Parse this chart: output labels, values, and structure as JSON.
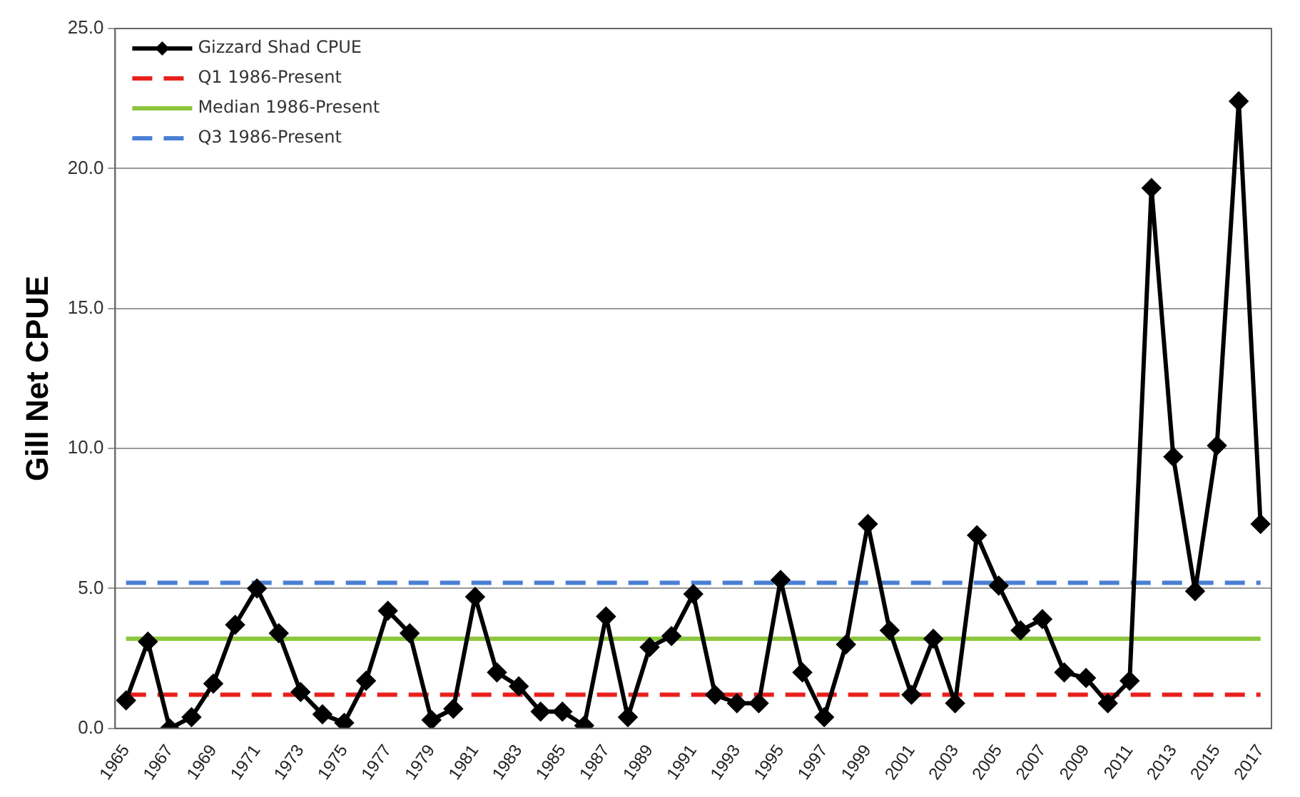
{
  "chart_data": {
    "type": "line",
    "ylabel": "Gill Net CPUE",
    "categories": [
      "1965",
      null,
      "1967",
      null,
      "1969",
      null,
      "1971",
      null,
      "1973",
      null,
      "1975",
      null,
      "1977",
      null,
      "1979",
      null,
      "1981",
      null,
      "1983",
      null,
      "1985",
      null,
      "1987",
      null,
      "1989",
      null,
      "1991",
      null,
      "1993",
      null,
      "1995",
      null,
      "1997",
      null,
      "1999",
      null,
      "2001",
      null,
      "2003",
      null,
      "2005",
      null,
      "2007",
      null,
      "2009",
      null,
      "2011",
      null,
      "2013",
      null,
      "2015",
      null,
      "2017"
    ],
    "series": [
      {
        "name": "Gizzard Shad CPUE",
        "color": "#000000",
        "marker": "diamond",
        "values": [
          1.0,
          3.1,
          0.0,
          0.4,
          1.6,
          3.7,
          5.0,
          3.4,
          1.3,
          0.5,
          0.2,
          1.7,
          4.2,
          3.4,
          0.3,
          0.7,
          4.7,
          2.0,
          1.5,
          0.6,
          0.6,
          0.1,
          4.0,
          0.4,
          2.9,
          3.3,
          4.8,
          1.2,
          0.9,
          0.9,
          5.3,
          2.0,
          0.4,
          3.0,
          7.3,
          3.5,
          1.2,
          3.2,
          0.9,
          6.9,
          5.1,
          3.5,
          3.9,
          2.0,
          1.8,
          0.9,
          1.7,
          19.3,
          9.7,
          4.9,
          10.1,
          22.4,
          7.3
        ]
      },
      {
        "name": "Q1 1986-Present",
        "color": "#e8201c",
        "line_style": "dashed",
        "marker": "none",
        "values": [
          1.2,
          1.2,
          1.2,
          1.2,
          1.2,
          1.2,
          1.2,
          1.2,
          1.2,
          1.2,
          1.2,
          1.2,
          1.2,
          1.2,
          1.2,
          1.2,
          1.2,
          1.2,
          1.2,
          1.2,
          1.2,
          1.2,
          1.2,
          1.2,
          1.2,
          1.2,
          1.2,
          1.2,
          1.2,
          1.2,
          1.2,
          1.2,
          1.2,
          1.2,
          1.2,
          1.2,
          1.2,
          1.2,
          1.2,
          1.2,
          1.2,
          1.2,
          1.2,
          1.2,
          1.2,
          1.2,
          1.2,
          1.2,
          1.2,
          1.2,
          1.2,
          1.2,
          1.2
        ]
      },
      {
        "name": "Median 1986-Present",
        "color": "#8cc63e",
        "line_style": "solid",
        "marker": "none",
        "values": [
          3.2,
          3.2,
          3.2,
          3.2,
          3.2,
          3.2,
          3.2,
          3.2,
          3.2,
          3.2,
          3.2,
          3.2,
          3.2,
          3.2,
          3.2,
          3.2,
          3.2,
          3.2,
          3.2,
          3.2,
          3.2,
          3.2,
          3.2,
          3.2,
          3.2,
          3.2,
          3.2,
          3.2,
          3.2,
          3.2,
          3.2,
          3.2,
          3.2,
          3.2,
          3.2,
          3.2,
          3.2,
          3.2,
          3.2,
          3.2,
          3.2,
          3.2,
          3.2,
          3.2,
          3.2,
          3.2,
          3.2,
          3.2,
          3.2,
          3.2,
          3.2,
          3.2,
          3.2
        ]
      },
      {
        "name": "Q3 1986-Present",
        "color": "#4a7fd4",
        "line_style": "dashed",
        "marker": "none",
        "values": [
          5.2,
          5.2,
          5.2,
          5.2,
          5.2,
          5.2,
          5.2,
          5.2,
          5.2,
          5.2,
          5.2,
          5.2,
          5.2,
          5.2,
          5.2,
          5.2,
          5.2,
          5.2,
          5.2,
          5.2,
          5.2,
          5.2,
          5.2,
          5.2,
          5.2,
          5.2,
          5.2,
          5.2,
          5.2,
          5.2,
          5.2,
          5.2,
          5.2,
          5.2,
          5.2,
          5.2,
          5.2,
          5.2,
          5.2,
          5.2,
          5.2,
          5.2,
          5.2,
          5.2,
          5.2,
          5.2,
          5.2,
          5.2,
          5.2,
          5.2,
          5.2,
          5.2,
          5.2
        ]
      }
    ],
    "ylim": [
      0,
      25
    ],
    "yticks": [
      {
        "value": 0,
        "label": "0.0"
      },
      {
        "value": 5,
        "label": "5.0"
      },
      {
        "value": 10,
        "label": "10.0"
      },
      {
        "value": 15,
        "label": "15.0"
      },
      {
        "value": 20,
        "label": "20.0"
      },
      {
        "value": 25,
        "label": "25.0"
      }
    ],
    "grid": "y",
    "legend": "top left",
    "line_style": "solid"
  }
}
